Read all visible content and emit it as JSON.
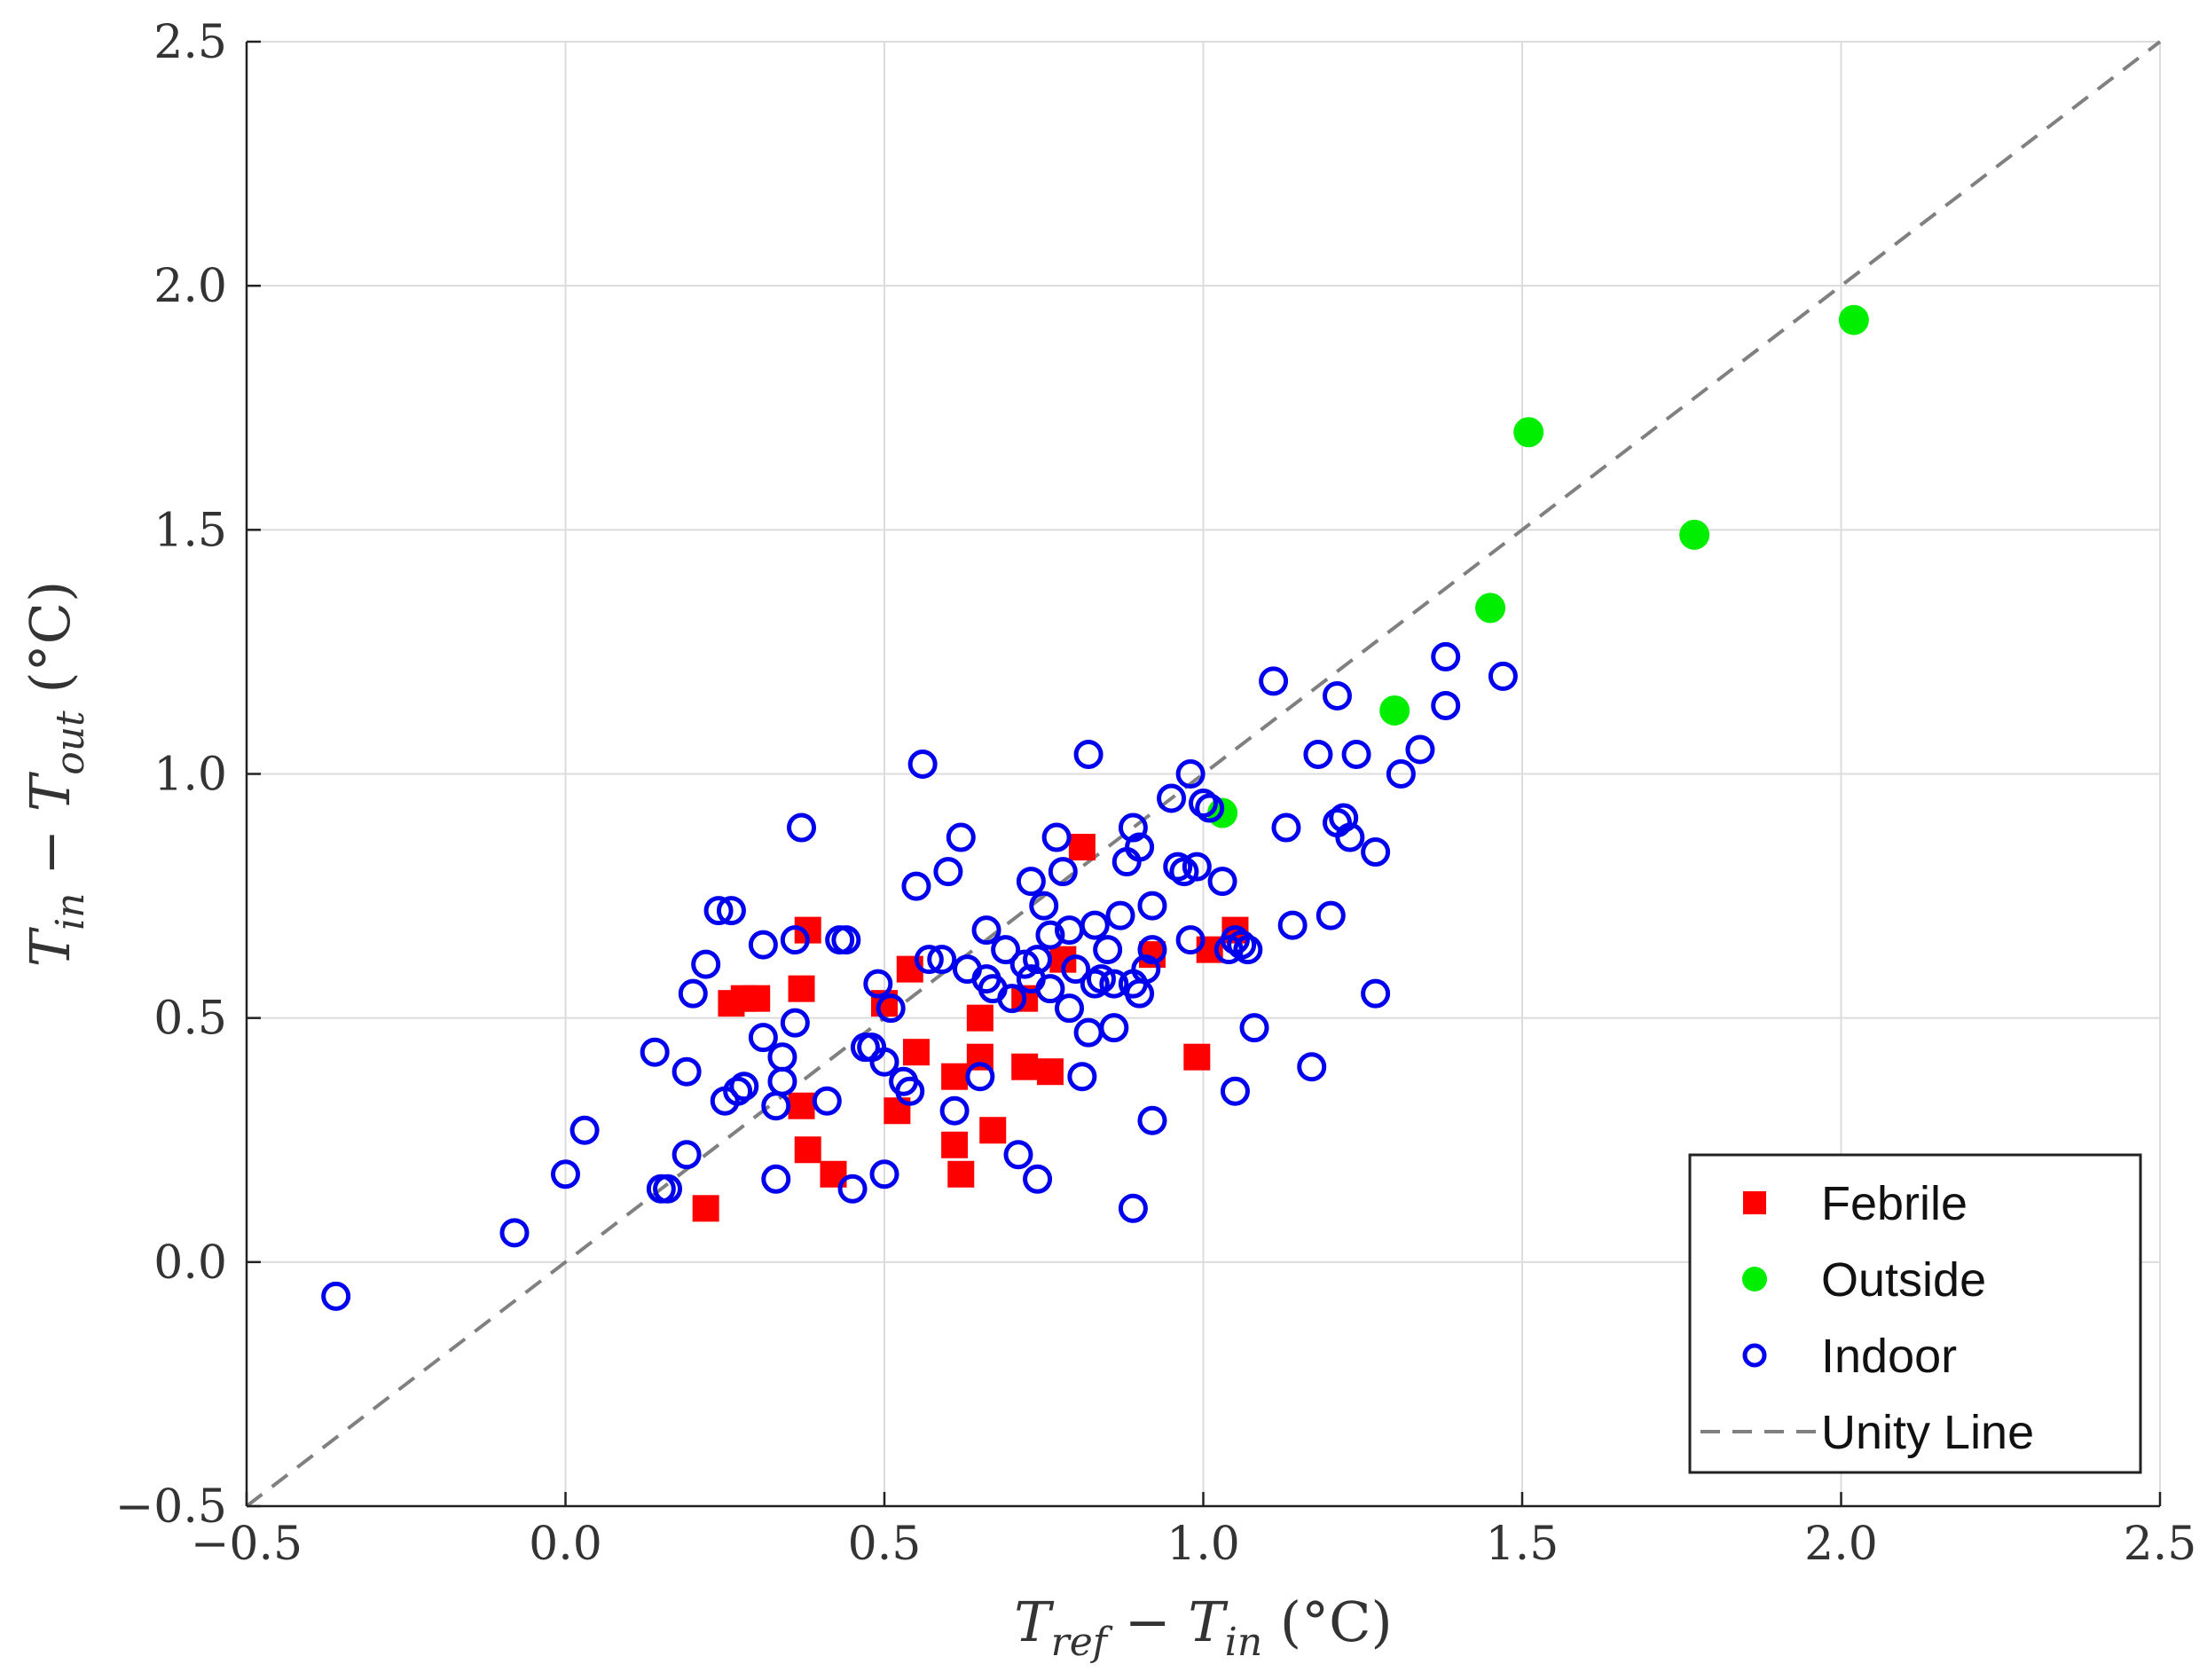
{
  "chart_data": {
    "type": "scatter",
    "title": "",
    "xlabel": {
      "parts": [
        {
          "t": "T",
          "it": true
        },
        {
          "t": "ref",
          "it": true,
          "sub": true
        },
        {
          "t": " − ",
          "it": false
        },
        {
          "t": "T",
          "it": true
        },
        {
          "t": "in",
          "it": true,
          "sub": true
        },
        {
          "t": " (°C)",
          "it": false
        }
      ]
    },
    "ylabel": {
      "parts": [
        {
          "t": "T",
          "it": true
        },
        {
          "t": "in",
          "it": true,
          "sub": true
        },
        {
          "t": " − ",
          "it": false
        },
        {
          "t": "T",
          "it": true
        },
        {
          "t": "out",
          "it": true,
          "sub": true
        },
        {
          "t": " (°C)",
          "it": false
        }
      ]
    },
    "xlim": [
      -0.5,
      2.5
    ],
    "ylim": [
      -0.5,
      2.5
    ],
    "xticks": [
      -0.5,
      0.0,
      0.5,
      1.0,
      1.5,
      2.0,
      2.5
    ],
    "yticks": [
      -0.5,
      0.0,
      0.5,
      1.0,
      1.5,
      2.0,
      2.5
    ],
    "xtick_labels": [
      "−0.5",
      "0.0",
      "0.5",
      "1.0",
      "1.5",
      "2.0",
      "2.5"
    ],
    "ytick_labels": [
      "−0.5",
      "0.0",
      "0.5",
      "1.0",
      "1.5",
      "2.0",
      "2.5"
    ],
    "grid": true,
    "legend_position": "bottom-right",
    "series": [
      {
        "name": "Febrile",
        "marker": "square-filled",
        "color": "#ff0000",
        "points": [
          [
            0.22,
            0.11
          ],
          [
            0.26,
            0.53
          ],
          [
            0.28,
            0.54
          ],
          [
            0.3,
            0.54
          ],
          [
            0.37,
            0.56
          ],
          [
            0.38,
            0.68
          ],
          [
            0.37,
            0.32
          ],
          [
            0.38,
            0.23
          ],
          [
            0.42,
            0.18
          ],
          [
            0.5,
            0.53
          ],
          [
            0.52,
            0.31
          ],
          [
            0.54,
            0.6
          ],
          [
            0.55,
            0.43
          ],
          [
            0.61,
            0.38
          ],
          [
            0.61,
            0.24
          ],
          [
            0.62,
            0.18
          ],
          [
            0.65,
            0.5
          ],
          [
            0.65,
            0.42
          ],
          [
            0.67,
            0.27
          ],
          [
            0.72,
            0.54
          ],
          [
            0.72,
            0.4
          ],
          [
            0.76,
            0.39
          ],
          [
            0.78,
            0.62
          ],
          [
            0.81,
            0.85
          ],
          [
            0.92,
            0.63
          ],
          [
            0.99,
            0.42
          ],
          [
            1.01,
            0.64
          ],
          [
            1.05,
            0.68
          ]
        ]
      },
      {
        "name": "Outside",
        "marker": "circle-filled",
        "color": "#00ee00",
        "points": [
          [
            1.03,
            0.92
          ],
          [
            1.3,
            1.13
          ],
          [
            1.45,
            1.34
          ],
          [
            1.51,
            1.7
          ],
          [
            1.77,
            1.49
          ],
          [
            2.02,
            1.93
          ]
        ]
      },
      {
        "name": "Indoor",
        "marker": "circle-open",
        "color": "#0000ee",
        "points": [
          [
            -0.36,
            -0.07
          ],
          [
            -0.08,
            0.06
          ],
          [
            0.0,
            0.18
          ],
          [
            0.03,
            0.27
          ],
          [
            0.14,
            0.43
          ],
          [
            0.15,
            0.15
          ],
          [
            0.16,
            0.15
          ],
          [
            0.19,
            0.22
          ],
          [
            0.19,
            0.39
          ],
          [
            0.2,
            0.55
          ],
          [
            0.22,
            0.61
          ],
          [
            0.24,
            0.72
          ],
          [
            0.26,
            0.72
          ],
          [
            0.25,
            0.33
          ],
          [
            0.27,
            0.35
          ],
          [
            0.28,
            0.36
          ],
          [
            0.31,
            0.65
          ],
          [
            0.31,
            0.46
          ],
          [
            0.33,
            0.32
          ],
          [
            0.33,
            0.17
          ],
          [
            0.34,
            0.37
          ],
          [
            0.34,
            0.42
          ],
          [
            0.36,
            0.49
          ],
          [
            0.36,
            0.66
          ],
          [
            0.37,
            0.89
          ],
          [
            0.41,
            0.33
          ],
          [
            0.43,
            0.66
          ],
          [
            0.44,
            0.66
          ],
          [
            0.45,
            0.15
          ],
          [
            0.47,
            0.44
          ],
          [
            0.48,
            0.44
          ],
          [
            0.49,
            0.57
          ],
          [
            0.5,
            0.41
          ],
          [
            0.5,
            0.18
          ],
          [
            0.51,
            0.52
          ],
          [
            0.53,
            0.37
          ],
          [
            0.54,
            0.35
          ],
          [
            0.55,
            0.77
          ],
          [
            0.56,
            1.02
          ],
          [
            0.57,
            0.62
          ],
          [
            0.59,
            0.62
          ],
          [
            0.6,
            0.8
          ],
          [
            0.61,
            0.31
          ],
          [
            0.62,
            0.87
          ],
          [
            0.63,
            0.6
          ],
          [
            0.65,
            0.38
          ],
          [
            0.66,
            0.68
          ],
          [
            0.66,
            0.58
          ],
          [
            0.67,
            0.56
          ],
          [
            0.69,
            0.64
          ],
          [
            0.7,
            0.54
          ],
          [
            0.71,
            0.22
          ],
          [
            0.72,
            0.61
          ],
          [
            0.73,
            0.58
          ],
          [
            0.73,
            0.78
          ],
          [
            0.74,
            0.62
          ],
          [
            0.74,
            0.17
          ],
          [
            0.75,
            0.73
          ],
          [
            0.76,
            0.67
          ],
          [
            0.76,
            0.56
          ],
          [
            0.77,
            0.87
          ],
          [
            0.78,
            0.8
          ],
          [
            0.79,
            0.68
          ],
          [
            0.79,
            0.52
          ],
          [
            0.8,
            0.6
          ],
          [
            0.81,
            0.38
          ],
          [
            0.82,
            1.04
          ],
          [
            0.82,
            0.47
          ],
          [
            0.83,
            0.69
          ],
          [
            0.83,
            0.57
          ],
          [
            0.84,
            0.58
          ],
          [
            0.85,
            0.64
          ],
          [
            0.86,
            0.57
          ],
          [
            0.86,
            0.48
          ],
          [
            0.87,
            0.71
          ],
          [
            0.88,
            0.82
          ],
          [
            0.89,
            0.11
          ],
          [
            0.89,
            0.89
          ],
          [
            0.89,
            0.57
          ],
          [
            0.9,
            0.55
          ],
          [
            0.9,
            0.85
          ],
          [
            0.91,
            0.6
          ],
          [
            0.92,
            0.73
          ],
          [
            0.92,
            0.64
          ],
          [
            0.92,
            0.29
          ],
          [
            0.95,
            0.95
          ],
          [
            0.96,
            0.81
          ],
          [
            0.97,
            0.8
          ],
          [
            0.98,
            1.0
          ],
          [
            0.98,
            0.66
          ],
          [
            0.99,
            0.81
          ],
          [
            1.0,
            0.94
          ],
          [
            1.01,
            0.93
          ],
          [
            1.03,
            0.78
          ],
          [
            1.04,
            0.64
          ],
          [
            1.05,
            0.66
          ],
          [
            1.05,
            0.35
          ],
          [
            1.06,
            0.65
          ],
          [
            1.07,
            0.64
          ],
          [
            1.08,
            0.48
          ],
          [
            1.11,
            1.19
          ],
          [
            1.13,
            0.89
          ],
          [
            1.14,
            0.69
          ],
          [
            1.17,
            0.4
          ],
          [
            1.18,
            1.04
          ],
          [
            1.2,
            0.71
          ],
          [
            1.21,
            0.9
          ],
          [
            1.21,
            1.16
          ],
          [
            1.22,
            0.91
          ],
          [
            1.23,
            0.87
          ],
          [
            1.24,
            1.04
          ],
          [
            1.27,
            0.84
          ],
          [
            1.27,
            0.55
          ],
          [
            1.31,
            1.0
          ],
          [
            1.34,
            1.05
          ],
          [
            1.38,
            1.24
          ],
          [
            1.38,
            1.14
          ],
          [
            1.47,
            1.2
          ]
        ]
      },
      {
        "name": "Unity Line",
        "marker": "line-dashed",
        "color": "#808080",
        "points": [
          [
            -0.5,
            -0.5
          ],
          [
            2.5,
            2.5
          ]
        ]
      }
    ]
  }
}
